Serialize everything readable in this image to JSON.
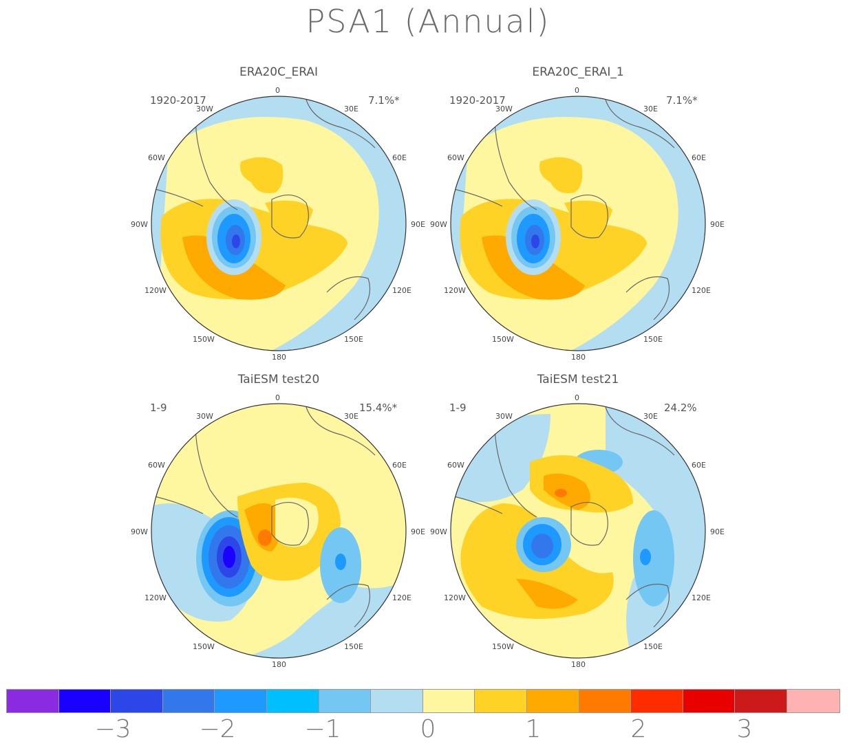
{
  "title": "PSA1 (Annual)",
  "panels": [
    {
      "name": "ERA20C_ERAI",
      "period": "1920-2017",
      "variance": "7.1%*"
    },
    {
      "name": "ERA20C_ERAI_1",
      "period": "1920-2017",
      "variance": "7.1%*"
    },
    {
      "name": "TaiESM test20",
      "period": "1-9",
      "variance": "15.4%*"
    },
    {
      "name": "TaiESM test21",
      "period": "1-9",
      "variance": "24.2%"
    }
  ],
  "longitude_labels": {
    "top": "0",
    "ne1": "30E",
    "ne2": "60E",
    "e": "90E",
    "se1": "120E",
    "se2": "150E",
    "bottom": "180",
    "sw2": "150W",
    "sw1": "120W",
    "w": "90W",
    "nw2": "60W",
    "nw1": "30W"
  },
  "colorbar": {
    "colors": [
      "#8a2be2",
      "#1a00ff",
      "#2c46e8",
      "#3377ec",
      "#1e99ff",
      "#00bfff",
      "#74c7f2",
      "#b3def2",
      "#fff6a0",
      "#ffd326",
      "#ffaa00",
      "#ff7a00",
      "#ff2c00",
      "#e80000",
      "#cc1a1a",
      "#ffb2b2"
    ],
    "tick_labels": [
      "−3",
      "−2",
      "−1",
      "0",
      "1",
      "2",
      "3"
    ]
  }
}
